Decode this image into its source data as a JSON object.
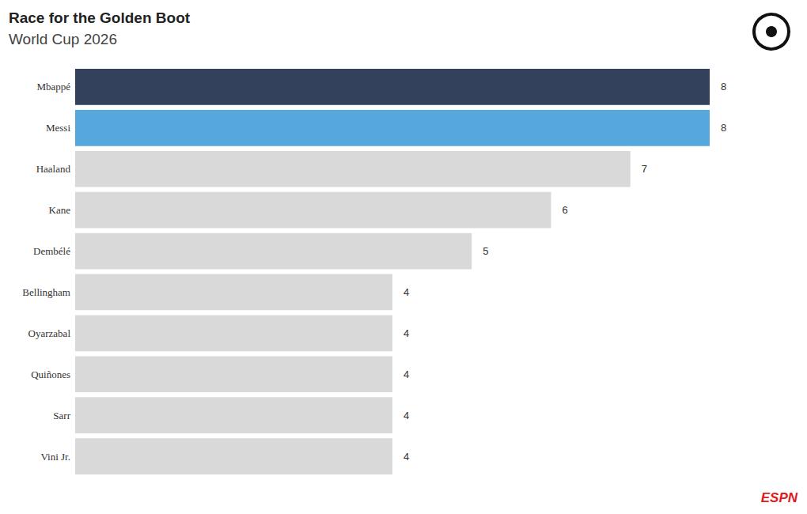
{
  "chart_data": {
    "type": "bar",
    "orientation": "horizontal",
    "title": "Race for the Golden Boot",
    "subtitle": "World Cup 2026",
    "categories": [
      "Mbappé",
      "Messi",
      "Haaland",
      "Kane",
      "Dembélé",
      "Bellingham",
      "Oyarzabal",
      "Quiñones",
      "Sarr",
      "Vini Jr."
    ],
    "values": [
      8,
      8,
      7,
      6,
      5,
      4,
      4,
      4,
      4,
      4
    ],
    "colors": [
      "#33415c",
      "#56a8dc",
      "#d9d9d9",
      "#d9d9d9",
      "#d9d9d9",
      "#d9d9d9",
      "#d9d9d9",
      "#d9d9d9",
      "#d9d9d9",
      "#d9d9d9"
    ],
    "xlim": [
      0,
      8
    ],
    "grid": false,
    "data_labels": true,
    "tick_labels": "y",
    "annotations": [
      "ESPN"
    ]
  }
}
